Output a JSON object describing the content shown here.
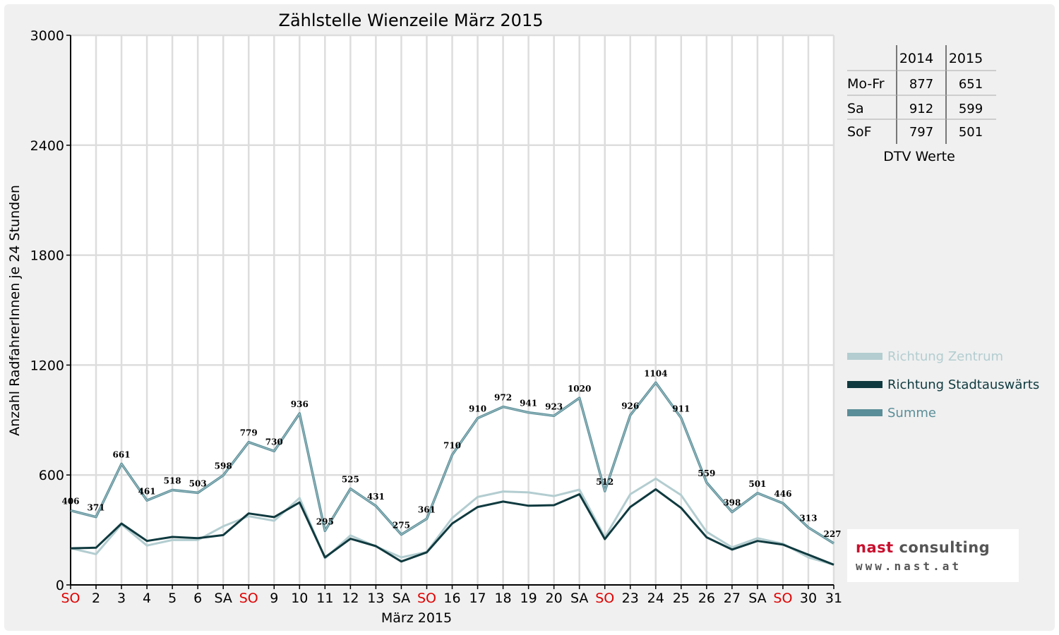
{
  "chart_data": {
    "type": "line",
    "title": "Zählstelle Wienzeile März 2015",
    "xlabel": "März 2015",
    "ylabel": "Anzahl RadfahrerInnen je 24 Stunden",
    "ylim": [
      0,
      3000
    ],
    "yticks": [
      "0",
      "600",
      "1200",
      "1800",
      "2400",
      "3000"
    ],
    "grid": true,
    "legend_position": "right",
    "categories": [
      "SO",
      "2",
      "3",
      "4",
      "5",
      "6",
      "SA",
      "SO",
      "9",
      "10",
      "11",
      "12",
      "13",
      "SA",
      "SO",
      "16",
      "17",
      "18",
      "19",
      "20",
      "SA",
      "SO",
      "23",
      "24",
      "25",
      "26",
      "27",
      "SA",
      "SO",
      "30",
      "31"
    ],
    "sunday_categories": [
      0,
      7,
      14,
      21,
      28
    ],
    "sunday_color": "#e00000",
    "series": [
      {
        "name": "Richtung Zentrum",
        "color": "#b3cdd0",
        "values": [
          200,
          168,
          330,
          215,
          245,
          245,
          320,
          375,
          350,
          475,
          145,
          270,
          210,
          150,
          180,
          365,
          480,
          510,
          505,
          485,
          520,
          260,
          495,
          580,
          490,
          290,
          205,
          255,
          225,
          150,
          110
        ]
      },
      {
        "name": "Richtung Stadtauswärts",
        "color": "#0f3a3f",
        "values": [
          200,
          203,
          335,
          240,
          262,
          255,
          272,
          390,
          370,
          450,
          150,
          252,
          212,
          128,
          178,
          335,
          425,
          455,
          432,
          435,
          495,
          250,
          425,
          522,
          420,
          260,
          193,
          240,
          220,
          165,
          110
        ]
      },
      {
        "name": "Summe",
        "color": "#5a8e98",
        "values": [
          406,
          371,
          661,
          461,
          518,
          503,
          598,
          779,
          730,
          936,
          295,
          525,
          431,
          275,
          361,
          710,
          910,
          972,
          941,
          923,
          1020,
          512,
          926,
          1104,
          911,
          559,
          398,
          501,
          446,
          313,
          227
        ],
        "labels": [
          "406",
          "371",
          "661",
          "461",
          "518",
          "503",
          "598",
          "779",
          "730",
          "936",
          "295",
          "525",
          "431",
          "275",
          "361",
          "710",
          "910",
          "972",
          "941",
          "923",
          "1020",
          "512",
          "926",
          "1104",
          "911",
          "559",
          "398",
          "501",
          "446",
          "313",
          "227"
        ]
      }
    ]
  },
  "dtv_table": {
    "caption": "DTV Werte",
    "col_headers": [
      "2014",
      "2015"
    ],
    "rows": [
      {
        "label": "Mo-Fr",
        "values": [
          "877",
          "651"
        ]
      },
      {
        "label": "Sa",
        "values": [
          "912",
          "599"
        ]
      },
      {
        "label": "SoF",
        "values": [
          "797",
          "501"
        ]
      }
    ]
  },
  "logo": {
    "line1_part1": "nast",
    "line1_part2": " consulting",
    "line2": "www.nast.at"
  }
}
